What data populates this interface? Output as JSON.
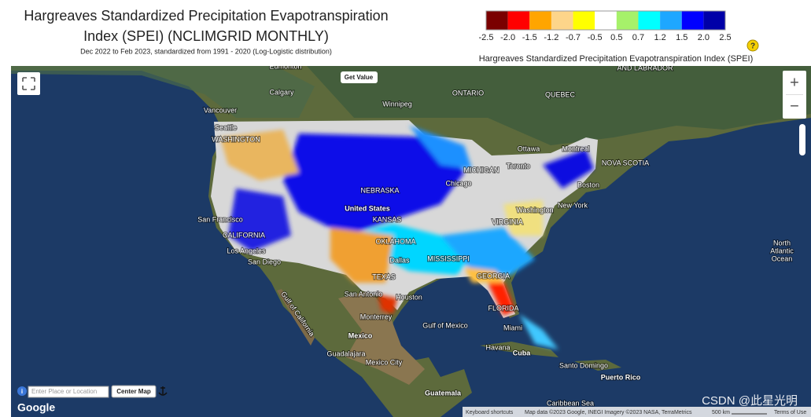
{
  "header": {
    "title_lines": [
      "Hargreaves Standardized Precipitation Evapotranspiration",
      "Index (SPEI) (NCLIMGRID MONTHLY)"
    ],
    "subtitle": "Dec 2022 to Feb 2023, standardized from 1991 - 2020 (Log-Logistic distribution)"
  },
  "legend": {
    "caption": "Hargreaves Standardized Precipitation Evapotranspiration Index (SPEI)",
    "help": "?",
    "colors": [
      "#7a0000",
      "#ff0000",
      "#ffa500",
      "#fdd58a",
      "#ffff00",
      "#ffffff",
      "#a6f16a",
      "#00ffff",
      "#1ea7ff",
      "#0000ff",
      "#0000a8"
    ],
    "ticks": [
      -2.5,
      {
        "value": -2,
        "label": "-2.0"
      },
      -1.5,
      -1.2,
      -0.7,
      -0.5,
      0.5,
      0.7,
      1.2,
      1.5,
      {
        "value": 2,
        "label": "2.0"
      },
      2.5
    ]
  },
  "controls": {
    "get_value": "Get Value",
    "zoom_in": "+",
    "zoom_out": "−",
    "search_placeholder": "Enter Place or Location",
    "center_map": "Center Map",
    "info": "i"
  },
  "map": {
    "labels": [
      "Edmonton",
      "Calgary",
      "Vancouver",
      "Seattle",
      "WASHINGTON",
      "Winnipeg",
      "ONTARIO",
      "QUEBEC",
      "AND LABRADOR",
      "Ottawa",
      "Montreal",
      "Toronto",
      "NOVA SCOTIA",
      "Boston",
      "New York",
      "Washington",
      "San Francisco",
      "CALIFORNIA",
      "Los Angeles",
      "San Diego",
      "United States",
      "KANSAS",
      "OKLAHOMA",
      "Dallas",
      "TEXAS",
      "San Antonio",
      "Houston",
      "MISSISSIPPI",
      "GEORGIA",
      "FLORIDA",
      "VIRGINIA",
      "Chicago",
      "MICHIGAN",
      "NEBRASKA",
      "Monterrey",
      "Gulf of California",
      "Gulf of Mexico",
      "Mexico",
      "Guadalajara",
      "Mexico City",
      "Miami",
      "Havana",
      "Cuba",
      "Santo Domingo",
      "Puerto Rico",
      "Guatemala",
      "Caribbean Sea",
      "North",
      "Atlantic",
      "Ocean"
    ]
  },
  "footer": {
    "google": "Google",
    "keyboard": "Keyboard shortcuts",
    "attribution": "Map data ©2023 Google, INEGI Imagery ©2023 NASA, TerraMetrics",
    "scale": "500 km",
    "terms": "Terms of Use",
    "watermark": "CSDN @此星光明"
  }
}
